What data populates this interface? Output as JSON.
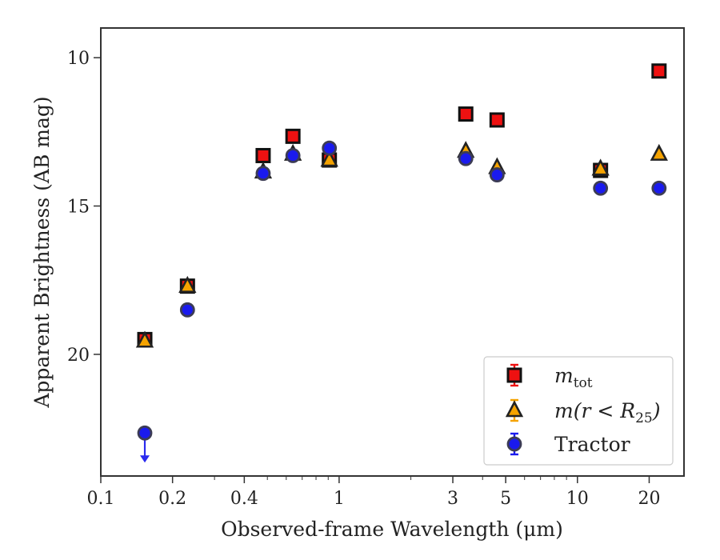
{
  "chart_data": {
    "type": "scatter",
    "xlabel": "Observed-frame Wavelength (μm)",
    "ylabel": "Apparent Brightness (AB mag)",
    "x_scale": "log",
    "xlim": [
      0.1,
      28
    ],
    "ylim": [
      24.1,
      9.0
    ],
    "y_inverted": true,
    "x_ticks": [
      {
        "value": 0.1,
        "label": "0.1"
      },
      {
        "value": 0.2,
        "label": "0.2"
      },
      {
        "value": 0.4,
        "label": "0.4"
      },
      {
        "value": 1,
        "label": "1"
      },
      {
        "value": 3,
        "label": "3"
      },
      {
        "value": 5,
        "label": "5"
      },
      {
        "value": 10,
        "label": "10"
      },
      {
        "value": 20,
        "label": "20"
      }
    ],
    "y_ticks": [
      {
        "value": 10,
        "label": "10"
      },
      {
        "value": 15,
        "label": "15"
      },
      {
        "value": 20,
        "label": "20"
      }
    ],
    "grid": false,
    "legend_position": "lower-right",
    "series": [
      {
        "name": "m_tot",
        "legend_main": "m",
        "legend_sub": "tot",
        "marker": "square",
        "color": "#ee1111",
        "points": [
          {
            "x": 0.153,
            "y": 19.5
          },
          {
            "x": 0.231,
            "y": 17.7
          },
          {
            "x": 0.48,
            "y": 13.3
          },
          {
            "x": 0.64,
            "y": 12.65
          },
          {
            "x": 0.91,
            "y": 13.45
          },
          {
            "x": 3.4,
            "y": 11.9
          },
          {
            "x": 4.6,
            "y": 12.1
          },
          {
            "x": 12.5,
            "y": 13.8
          },
          {
            "x": 22.0,
            "y": 10.45
          }
        ]
      },
      {
        "name": "m(r < R25)",
        "legend_main": "m(r < R",
        "legend_sub": "25",
        "legend_tail": ")",
        "marker": "triangle",
        "color": "#f5a300",
        "points": [
          {
            "x": 0.153,
            "y": 19.55
          },
          {
            "x": 0.231,
            "y": 17.7
          },
          {
            "x": 0.48,
            "y": 13.85
          },
          {
            "x": 0.64,
            "y": 13.25
          },
          {
            "x": 0.91,
            "y": 13.45
          },
          {
            "x": 3.4,
            "y": 13.15
          },
          {
            "x": 4.6,
            "y": 13.7
          },
          {
            "x": 12.5,
            "y": 13.75
          },
          {
            "x": 22.0,
            "y": 13.25
          }
        ]
      },
      {
        "name": "Tractor",
        "marker": "circle",
        "color": "#1a1aee",
        "upper_limit_color": "#2a2aee",
        "points": [
          {
            "x": 0.153,
            "y": 22.65,
            "upper_limit": true
          },
          {
            "x": 0.231,
            "y": 18.5
          },
          {
            "x": 0.48,
            "y": 13.9
          },
          {
            "x": 0.64,
            "y": 13.3
          },
          {
            "x": 0.91,
            "y": 13.05
          },
          {
            "x": 3.4,
            "y": 13.4
          },
          {
            "x": 4.6,
            "y": 13.95
          },
          {
            "x": 12.5,
            "y": 14.4
          },
          {
            "x": 22.0,
            "y": 14.4
          }
        ]
      }
    ]
  }
}
